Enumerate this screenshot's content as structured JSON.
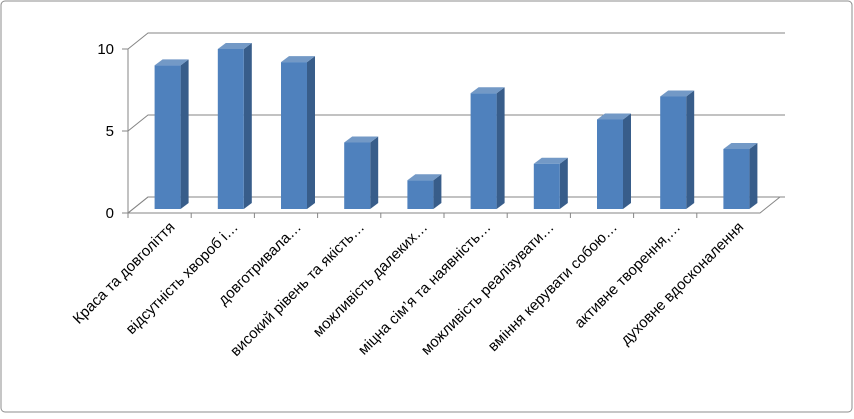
{
  "chart_data": {
    "type": "bar3d",
    "categories": [
      "Краса та довголіття",
      "відсутність хвороб і…",
      "довготривала…",
      "високий рівень та якість…",
      "можливість далеких…",
      "міцна сім’я та наявність…",
      "можливість реалізувати…",
      "вміння керувати собою…",
      "активне творення,…",
      "духовне вдосконалення"
    ],
    "values": [
      9,
      10,
      9.2,
      4.3,
      2,
      7.3,
      3,
      5.7,
      7.1,
      3.9
    ],
    "color": "#4f81bd",
    "ylim": [
      0,
      10
    ],
    "yticks": [
      0,
      5,
      10
    ],
    "grid": true
  }
}
